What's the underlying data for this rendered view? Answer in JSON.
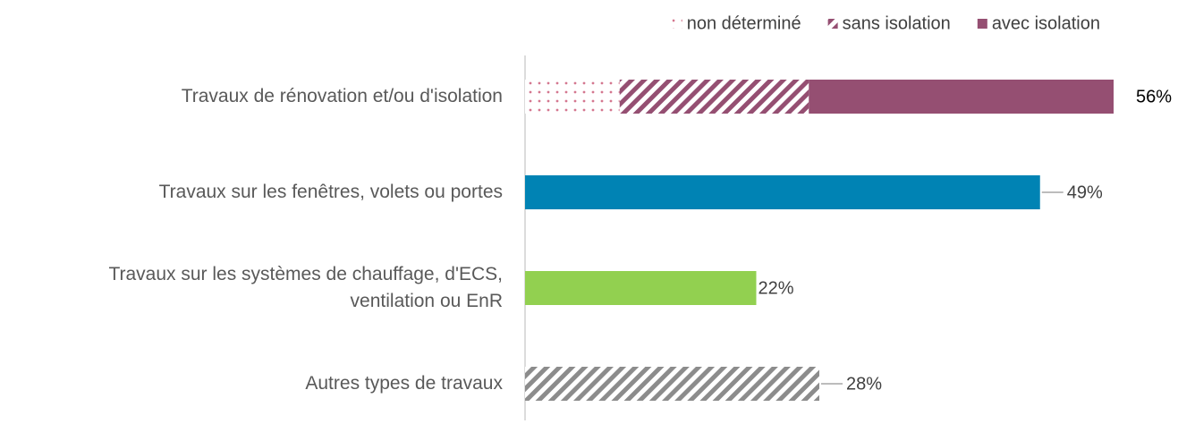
{
  "chart_data": {
    "type": "bar",
    "orientation": "horizontal",
    "categories": [
      "Travaux de rénovation et/ou d'isolation",
      "Travaux sur les fenêtres, volets ou portes",
      "Travaux sur les systèmes de chauffage, d'ECS,\nventilation ou EnR",
      "Autres types de travaux"
    ],
    "values": [
      56,
      49,
      22,
      28
    ],
    "value_labels": [
      "56%",
      "49%",
      "22%",
      "28%"
    ],
    "bar_colors": [
      null,
      "#0083b4",
      "#92d050",
      "#8c8c8c"
    ],
    "bar_patterns": [
      null,
      "solid",
      "solid",
      "hatch"
    ],
    "leader_lines": [
      false,
      true,
      false,
      true
    ],
    "series": [
      {
        "name": "non déterminé",
        "color": "#d4778f",
        "pattern": "dots",
        "values": [
          9,
          null,
          null,
          null
        ]
      },
      {
        "name": "sans isolation",
        "color": "#954f72",
        "pattern": "hatch",
        "values": [
          18,
          null,
          null,
          null
        ]
      },
      {
        "name": "avec isolation",
        "color": "#954f72",
        "pattern": "solid",
        "values": [
          29,
          null,
          null,
          null
        ]
      }
    ],
    "xlim": [
      0,
      60
    ],
    "legend": "top-right"
  }
}
